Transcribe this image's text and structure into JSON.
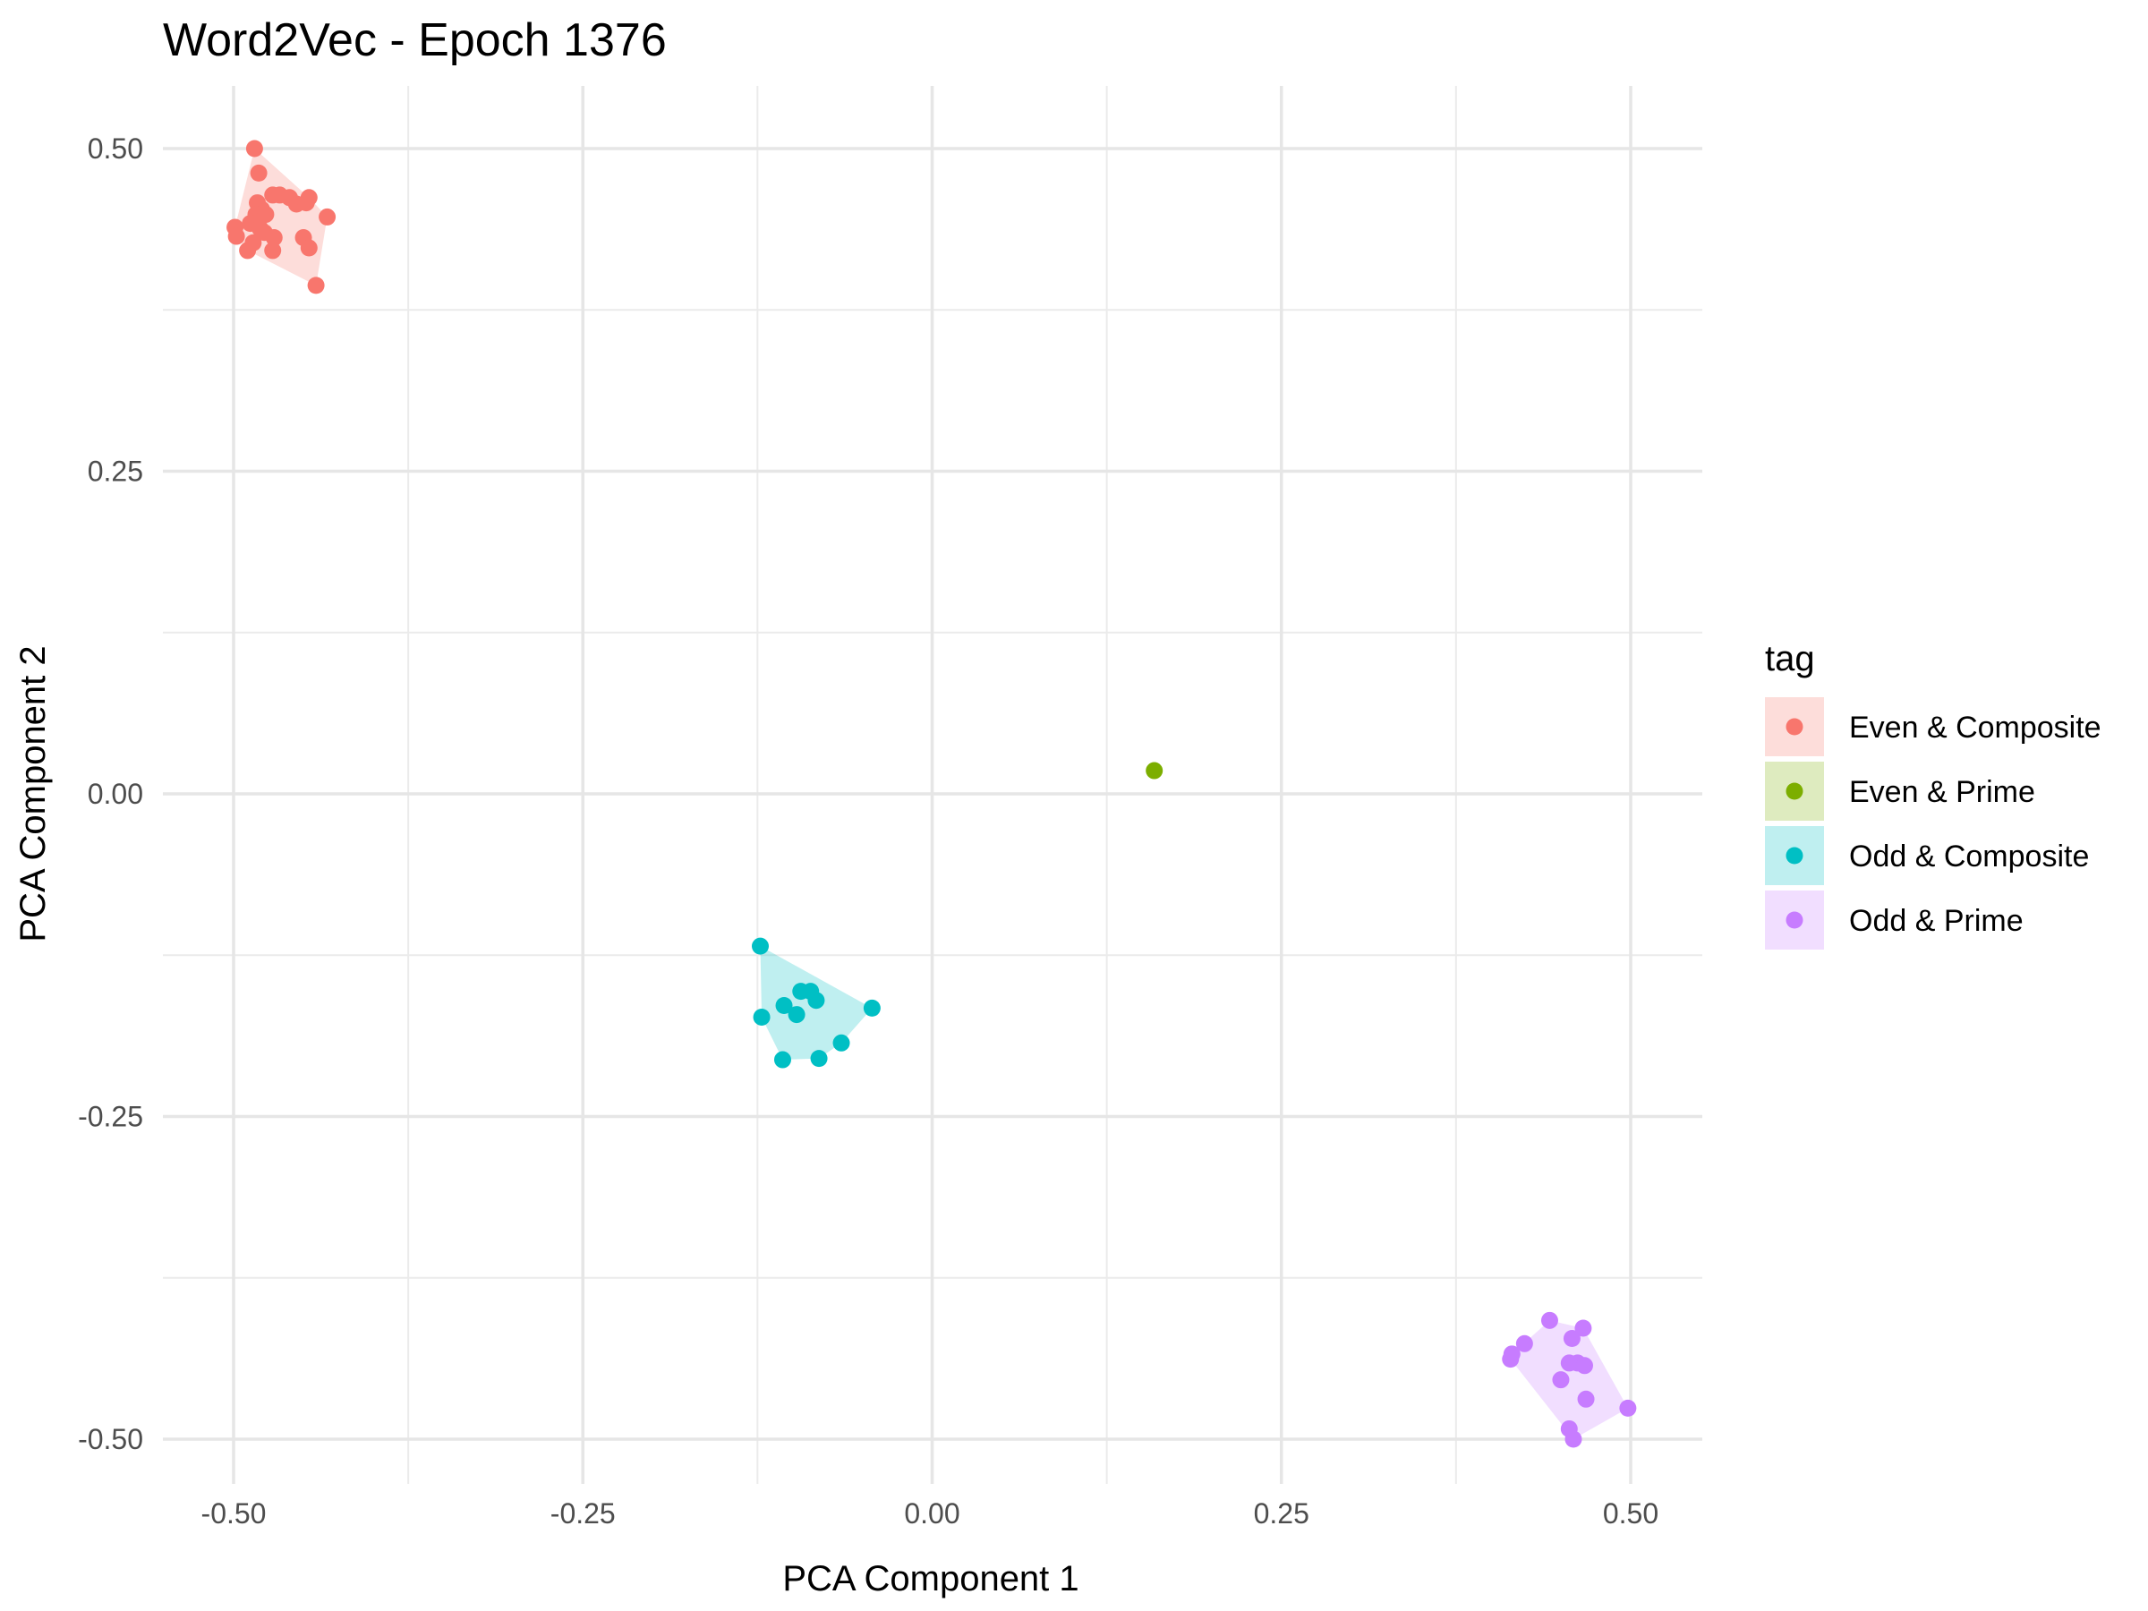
{
  "chart_data": {
    "type": "scatter",
    "title": "Word2Vec - Epoch 1376",
    "xlabel": "PCA Component 1",
    "ylabel": "PCA Component 2",
    "xlim": [
      -0.55,
      0.55
    ],
    "ylim": [
      -0.55,
      0.55
    ],
    "x_ticks": [
      -0.5,
      -0.25,
      0.0,
      0.25,
      0.5
    ],
    "x_tick_labels": [
      "-0.50",
      "-0.25",
      "0.00",
      "0.25",
      "0.50"
    ],
    "y_ticks": [
      -0.5,
      -0.25,
      0.0,
      0.25,
      0.5
    ],
    "y_tick_labels": [
      "-0.50",
      "-0.25",
      "0.00",
      "0.25",
      "0.50"
    ],
    "grid": true,
    "legend": {
      "title": "tag",
      "placement": "right"
    },
    "series": [
      {
        "name": "Even & Composite",
        "color": "#F8766D",
        "hull": true,
        "points": [
          [
            -0.485,
            0.5
          ],
          [
            -0.482,
            0.481
          ],
          [
            -0.472,
            0.464
          ],
          [
            -0.467,
            0.464
          ],
          [
            -0.46,
            0.462
          ],
          [
            -0.455,
            0.457
          ],
          [
            -0.448,
            0.458
          ],
          [
            -0.446,
            0.462
          ],
          [
            -0.483,
            0.458
          ],
          [
            -0.48,
            0.453
          ],
          [
            -0.484,
            0.449
          ],
          [
            -0.477,
            0.449
          ],
          [
            -0.488,
            0.442
          ],
          [
            -0.481,
            0.438
          ],
          [
            -0.478,
            0.435
          ],
          [
            -0.499,
            0.439
          ],
          [
            -0.498,
            0.432
          ],
          [
            -0.486,
            0.427
          ],
          [
            -0.471,
            0.431
          ],
          [
            -0.45,
            0.431
          ],
          [
            -0.446,
            0.423
          ],
          [
            -0.49,
            0.421
          ],
          [
            -0.472,
            0.421
          ],
          [
            -0.433,
            0.447
          ],
          [
            -0.441,
            0.394
          ]
        ]
      },
      {
        "name": "Even & Prime",
        "color": "#7CAE00",
        "hull": false,
        "points": [
          [
            0.159,
            0.018
          ]
        ]
      },
      {
        "name": "Odd & Composite",
        "color": "#00BFC4",
        "hull": true,
        "points": [
          [
            -0.123,
            -0.118
          ],
          [
            -0.094,
            -0.153
          ],
          [
            -0.087,
            -0.153
          ],
          [
            -0.083,
            -0.16
          ],
          [
            -0.106,
            -0.164
          ],
          [
            -0.122,
            -0.173
          ],
          [
            -0.097,
            -0.171
          ],
          [
            -0.043,
            -0.166
          ],
          [
            -0.065,
            -0.193
          ],
          [
            -0.081,
            -0.205
          ],
          [
            -0.107,
            -0.206
          ]
        ]
      },
      {
        "name": "Odd & Prime",
        "color": "#C77CFF",
        "hull": true,
        "points": [
          [
            0.442,
            -0.408
          ],
          [
            0.466,
            -0.414
          ],
          [
            0.458,
            -0.422
          ],
          [
            0.424,
            -0.426
          ],
          [
            0.415,
            -0.434
          ],
          [
            0.414,
            -0.438
          ],
          [
            0.456,
            -0.441
          ],
          [
            0.462,
            -0.441
          ],
          [
            0.467,
            -0.443
          ],
          [
            0.45,
            -0.454
          ],
          [
            0.468,
            -0.469
          ],
          [
            0.498,
            -0.476
          ],
          [
            0.456,
            -0.492
          ],
          [
            0.459,
            -0.5
          ]
        ]
      }
    ]
  }
}
